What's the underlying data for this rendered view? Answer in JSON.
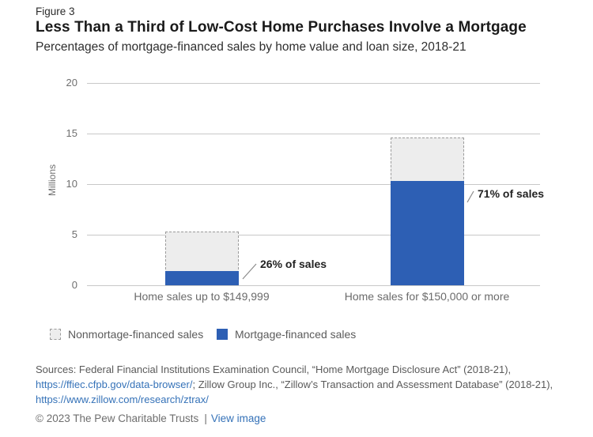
{
  "figure_label": "Figure 3",
  "title": "Less Than a Third of Low-Cost Home Purchases Involve a Mortgage",
  "subtitle": "Percentages of mortgage-financed sales by home value and loan size, 2018-21",
  "chart_data": {
    "type": "bar",
    "title": "",
    "xlabel": "",
    "ylabel": "Millions",
    "ylim": [
      0,
      20
    ],
    "yticks": [
      0,
      5,
      10,
      15,
      20
    ],
    "grid": true,
    "categories": [
      "Home sales up to $149,999",
      "Home sales for $150,000 or more"
    ],
    "series": [
      {
        "name": "Nonmortage-financed sales",
        "role": "total-sales",
        "style": "dashed-light-gray",
        "values": [
          5.3,
          14.6
        ]
      },
      {
        "name": "Mortgage-financed sales",
        "role": "mortgage-financed",
        "style": "solid-blue",
        "values": [
          1.4,
          10.3
        ]
      }
    ],
    "annotations": [
      {
        "text": "26% of sales",
        "category": "Home sales up to $149,999"
      },
      {
        "text": "71% of sales",
        "category": "Home sales for $150,000 or more"
      }
    ],
    "colors": {
      "mortgage_bar": "#2d5fb4",
      "nonmortgage_fill": "#ededed",
      "nonmortgage_border": "#9b9b9b",
      "gridline": "#c8c8c8",
      "link_blue": "#3572b8"
    },
    "legend_position": "bottom-left"
  },
  "legend": {
    "items": [
      {
        "label": "Nonmortage-financed sales",
        "swatch": "dashed-gray"
      },
      {
        "label": "Mortgage-financed sales",
        "swatch": "solid-blue"
      }
    ]
  },
  "sources": {
    "prefix": "Sources: Federal Financial Institutions Examination Council, “Home Mortgage Disclosure Act” (2018-21), ",
    "link1": "https://ffiec.cfpb.gov/data-browser/",
    "middle": "; Zillow Group Inc., “Zillow’s Transaction and Assessment Database” (2018-21), ",
    "link2": "https://www.zillow.com/research/ztrax/"
  },
  "footer": {
    "copyright": "© 2023 The Pew Charitable Trusts",
    "separator": "|",
    "view_image_label": "View image"
  }
}
